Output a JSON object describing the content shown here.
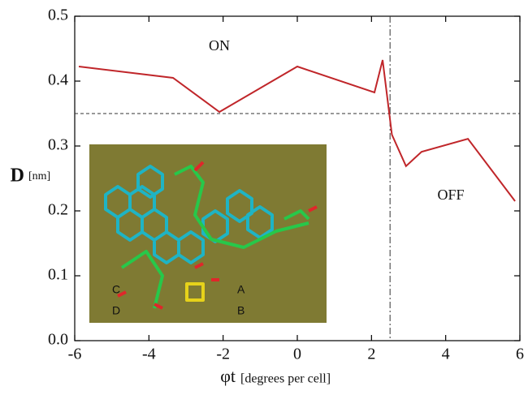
{
  "chart_data": {
    "type": "line",
    "y_label": "D",
    "y_label_unit": "[nm]",
    "x_label": "φt",
    "x_label_unit": "[degrees per cell]",
    "x": [
      -5.89,
      -3.35,
      -2.1,
      0.0,
      2.08,
      2.3,
      2.55,
      2.93,
      3.35,
      4.6,
      5.87
    ],
    "series": [
      {
        "name": "D",
        "color": "#c0262a",
        "values": [
          0.4225,
          0.405,
          0.3525,
          0.4225,
          0.3825,
          0.4325,
          0.3175,
          0.269,
          0.291,
          0.311,
          0.215
        ]
      }
    ],
    "xlim": [
      -6,
      6
    ],
    "xticks": [
      -6,
      -4,
      -2,
      0,
      2,
      4,
      6
    ],
    "ylim": [
      0,
      0.5
    ],
    "yticks": [
      {
        "value": 0,
        "label": "0.0"
      },
      0.1,
      0.2,
      0.3,
      0.4,
      0.5
    ],
    "threshold_y": 0.35,
    "threshold_x": 2.5,
    "region_labels": [
      "ON",
      "OFF"
    ],
    "inset_labels": [
      "A",
      "B",
      "C",
      "D"
    ]
  }
}
